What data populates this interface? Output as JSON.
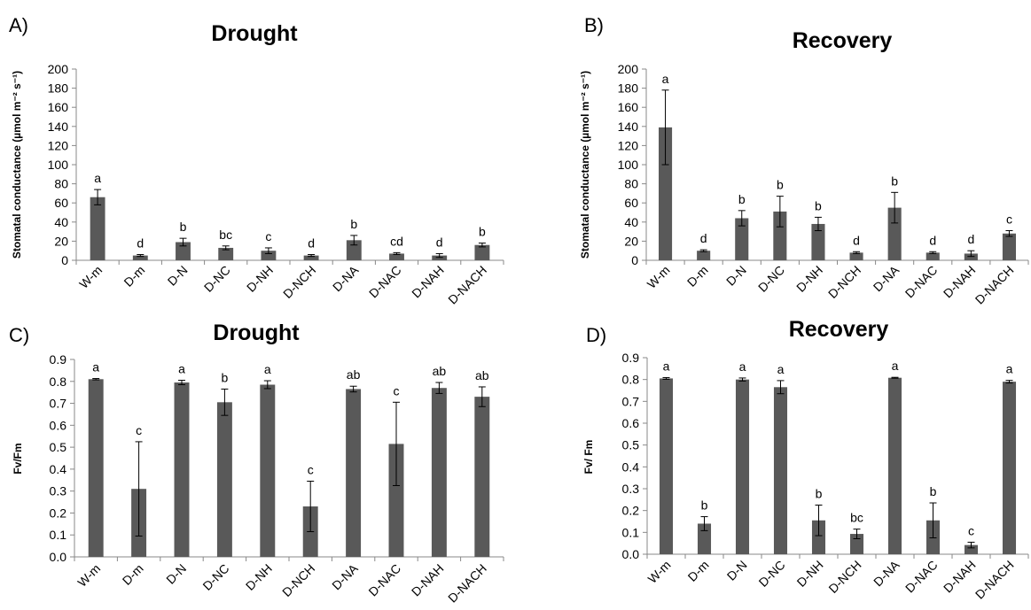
{
  "colors": {
    "bar": "#595959",
    "axis": "#888888",
    "text": "#000000"
  },
  "chart_data": [
    {
      "panel": "A)",
      "type": "bar",
      "title": "Drought",
      "ylabel": "Stomatal conductance (µmol m⁻² s⁻¹)",
      "ylim": [
        0,
        200
      ],
      "yticks": [
        "0",
        "20",
        "40",
        "60",
        "80",
        "100",
        "120",
        "140",
        "160",
        "180",
        "200"
      ],
      "categories": [
        "W-m",
        "D-m",
        "D-N",
        "D-NC",
        "D-NH",
        "D-NCH",
        "D-NA",
        "D-NAC",
        "D-NAH",
        "D-NACH"
      ],
      "values": [
        66,
        5,
        19,
        13,
        10,
        5,
        21,
        7,
        5,
        16
      ],
      "errors": [
        8,
        1,
        4,
        2,
        3,
        1,
        5,
        1,
        2,
        2
      ],
      "letters": [
        "a",
        "d",
        "b",
        "bc",
        "c",
        "d",
        "b",
        "cd",
        "d",
        "b"
      ]
    },
    {
      "panel": "B)",
      "type": "bar",
      "title": "Recovery",
      "ylabel": "Stomatal conductance (µmol m⁻² s⁻¹)",
      "ylim": [
        0,
        200
      ],
      "yticks": [
        "0",
        "20",
        "40",
        "60",
        "80",
        "100",
        "120",
        "140",
        "160",
        "180",
        "200"
      ],
      "categories": [
        "W-m",
        "D-m",
        "D-N",
        "D-NC",
        "D-NH",
        "D-NCH",
        "D-NA",
        "D-NAC",
        "D-NAH",
        "D-NACH"
      ],
      "values": [
        139,
        10,
        44,
        51,
        38,
        8,
        55,
        8,
        7,
        28
      ],
      "errors": [
        39,
        1,
        8,
        16,
        7,
        1,
        16,
        1,
        3,
        3
      ],
      "letters": [
        "a",
        "d",
        "b",
        "b",
        "b",
        "d",
        "b",
        "d",
        "d",
        "c"
      ]
    },
    {
      "panel": "C)",
      "type": "bar",
      "title": "Drought",
      "ylabel": "Fv/Fm",
      "ylim": [
        0,
        0.9
      ],
      "yticks": [
        "0.0",
        "0.1",
        "0.2",
        "0.3",
        "0.4",
        "0.5",
        "0.6",
        "0.7",
        "0.8",
        "0.9"
      ],
      "categories": [
        "W-m",
        "D-m",
        "D-N",
        "D-NC",
        "D-NH",
        "D-NCH",
        "D-NA",
        "D-NAC",
        "D-NAH",
        "D-NACH"
      ],
      "values": [
        0.81,
        0.31,
        0.795,
        0.705,
        0.785,
        0.23,
        0.765,
        0.515,
        0.77,
        0.73
      ],
      "errors": [
        0.003,
        0.215,
        0.01,
        0.06,
        0.018,
        0.115,
        0.013,
        0.19,
        0.025,
        0.045
      ],
      "letters": [
        "a",
        "c",
        "a",
        "b",
        "a",
        "c",
        "ab",
        "c",
        "ab",
        "ab"
      ]
    },
    {
      "panel": "D)",
      "type": "bar",
      "title": "Recovery",
      "ylabel": "Fv/ Fm",
      "ylim": [
        0,
        0.9
      ],
      "yticks": [
        "0.0",
        "0.1",
        "0.2",
        "0.3",
        "0.4",
        "0.5",
        "0.6",
        "0.7",
        "0.8",
        "0.9"
      ],
      "categories": [
        "W-m",
        "D-m",
        "D-N",
        "D-NC",
        "D-NH",
        "D-NCH",
        "D-NA",
        "D-NAC",
        "D-NAH",
        "D-NACH"
      ],
      "values": [
        0.805,
        0.14,
        0.8,
        0.765,
        0.155,
        0.093,
        0.808,
        0.155,
        0.042,
        0.79
      ],
      "errors": [
        0.004,
        0.032,
        0.007,
        0.03,
        0.07,
        0.022,
        0.002,
        0.08,
        0.013,
        0.006
      ],
      "letters": [
        "a",
        "b",
        "a",
        "a",
        "b",
        "bc",
        "a",
        "b",
        "c",
        "a"
      ]
    }
  ]
}
